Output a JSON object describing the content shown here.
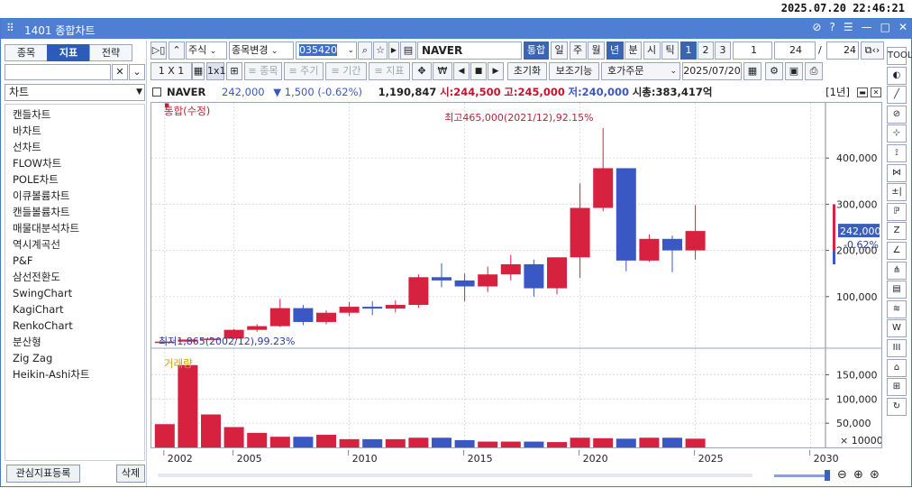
{
  "clock": "2025.07.20 22:46:21",
  "window": {
    "title": "1401 종합차트",
    "controls": [
      "⊘",
      "?",
      "☰",
      "—",
      "□",
      "✕"
    ]
  },
  "left_panel": {
    "tabs": [
      "종목",
      "지표",
      "전략"
    ],
    "active_tab": 1,
    "category": "차트",
    "chart_types": [
      "캔들차트",
      "바차트",
      "선차트",
      "FLOW차트",
      "POLE차트",
      "이큐볼륨차트",
      "캔들볼륨차트",
      "매물대분석차트",
      "역시계곡선",
      "P&F",
      "삼선전환도",
      "SwingChart",
      "KagiChart",
      "RenkoChart",
      "분산형",
      "Zig Zag",
      "Heikin-Ashi차트"
    ],
    "register_button": "관심지표등록",
    "delete_button": "삭제"
  },
  "toolbar1": {
    "market": "주식",
    "change": "종목변경",
    "code": "035420",
    "name": "NAVER",
    "combined": "통합",
    "periods": [
      "일",
      "주",
      "월",
      "년",
      "분",
      "시",
      "틱"
    ],
    "active_period": "년",
    "pages": [
      "1",
      "2",
      "3"
    ],
    "n1": "1",
    "n2": "24",
    "n3": "24"
  },
  "toolbar2": {
    "ratio": "1 X 1",
    "btn_1x1": "1x1",
    "item": "≡ 종목",
    "cycle": "≡ 주기",
    "period": "≡ 기간",
    "indicator": "≡ 지표",
    "won": "₩",
    "reset": "초기화",
    "aux": "보조기능",
    "order": "호가주문",
    "date": "2025/07/20"
  },
  "infobar": {
    "name": "NAVER",
    "price": "242,000",
    "arrow": "▼",
    "change": "1,500",
    "rate": "(-0.62%)",
    "volume": "1,190,847",
    "open": "시:244,500",
    "high": "고:245,000",
    "low": "저:240,000",
    "cap": "시총:383,417억",
    "span": "[1년]"
  },
  "chart_data": [
    {
      "type": "candlestick",
      "title": "통합(수정)",
      "price_scale": {
        "min": 0,
        "max": 500000
      },
      "y_ticks": [
        "400,000",
        "300,000",
        "200,000",
        "100,000"
      ],
      "y_tick_values": [
        400000,
        300000,
        200000,
        100000
      ],
      "annotations": {
        "high": "최고465,000(2021/12),92.15%",
        "low": "최저1,865(2002/12),99.23%"
      },
      "current_price_label": "242,000",
      "current_rate_label": "-0.62%",
      "candles": [
        {
          "year": 2002,
          "o": 2000,
          "h": 3000,
          "l": 1865,
          "c": 2500
        },
        {
          "year": 2003,
          "o": 2500,
          "h": 8000,
          "l": 2000,
          "c": 7000
        },
        {
          "year": 2004,
          "o": 7000,
          "h": 12000,
          "l": 6000,
          "c": 9000
        },
        {
          "year": 2005,
          "o": 9000,
          "h": 30000,
          "l": 8000,
          "c": 28000
        },
        {
          "year": 2006,
          "o": 28000,
          "h": 40000,
          "l": 24000,
          "c": 36000
        },
        {
          "year": 2007,
          "o": 36000,
          "h": 95000,
          "l": 34000,
          "c": 75000
        },
        {
          "year": 2008,
          "o": 75000,
          "h": 82000,
          "l": 38000,
          "c": 45000
        },
        {
          "year": 2009,
          "o": 45000,
          "h": 70000,
          "l": 40000,
          "c": 65000
        },
        {
          "year": 2010,
          "o": 65000,
          "h": 88000,
          "l": 58000,
          "c": 78000
        },
        {
          "year": 2011,
          "o": 78000,
          "h": 90000,
          "l": 60000,
          "c": 74000
        },
        {
          "year": 2012,
          "o": 74000,
          "h": 92000,
          "l": 66000,
          "c": 82000
        },
        {
          "year": 2013,
          "o": 82000,
          "h": 148000,
          "l": 76000,
          "c": 142000
        },
        {
          "year": 2014,
          "o": 142000,
          "h": 172000,
          "l": 120000,
          "c": 135000
        },
        {
          "year": 2015,
          "o": 135000,
          "h": 150000,
          "l": 90000,
          "c": 122000
        },
        {
          "year": 2016,
          "o": 122000,
          "h": 165000,
          "l": 110000,
          "c": 148000
        },
        {
          "year": 2017,
          "o": 148000,
          "h": 190000,
          "l": 135000,
          "c": 170000
        },
        {
          "year": 2018,
          "o": 170000,
          "h": 180000,
          "l": 100000,
          "c": 118000
        },
        {
          "year": 2019,
          "o": 118000,
          "h": 185000,
          "l": 105000,
          "c": 185000
        },
        {
          "year": 2020,
          "o": 185000,
          "h": 345000,
          "l": 140000,
          "c": 292000
        },
        {
          "year": 2021,
          "o": 292000,
          "h": 465000,
          "l": 285000,
          "c": 378000
        },
        {
          "year": 2022,
          "o": 378000,
          "h": 378000,
          "l": 155000,
          "c": 178000
        },
        {
          "year": 2023,
          "o": 178000,
          "h": 235000,
          "l": 175000,
          "c": 225000
        },
        {
          "year": 2024,
          "o": 225000,
          "h": 232000,
          "l": 153000,
          "c": 200000
        },
        {
          "year": 2025,
          "o": 200000,
          "h": 298000,
          "l": 180000,
          "c": 242000
        }
      ]
    },
    {
      "type": "bar",
      "title": "거래량",
      "y_ticks": [
        "150,000",
        "100,000",
        "50,000"
      ],
      "y_tick_values": [
        150000,
        100000,
        50000
      ],
      "unit_label": "× 10000",
      "vol_max": 190000,
      "volumes": [
        48000,
        170000,
        68000,
        42000,
        30000,
        22000,
        22000,
        26000,
        17000,
        17000,
        17000,
        20000,
        20000,
        15000,
        12000,
        12000,
        12000,
        11000,
        20000,
        19000,
        18000,
        20000,
        20000,
        18000
      ]
    }
  ],
  "x_axis_labels": [
    "2002",
    "2005",
    "2010",
    "2015",
    "2020",
    "2025",
    "2030"
  ],
  "x_axis_years": [
    2002,
    2005,
    2010,
    2015,
    2020,
    2025,
    2030
  ],
  "colors": {
    "up": "#d6213f",
    "down": "#3a58c4",
    "accent": "#3b64b4"
  },
  "right_toolbar": [
    "TOOL",
    "◐",
    "╱",
    "⊘",
    "⊹",
    "⟟",
    "⋈",
    "±|",
    "ℙ",
    "Z",
    "∠",
    "⋔",
    "▤",
    "≋",
    "W",
    "III",
    "⌂",
    "⊞",
    "↻"
  ]
}
